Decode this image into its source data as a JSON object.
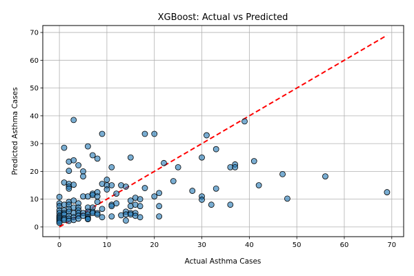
{
  "chart_data": {
    "type": "scatter",
    "title": "XGBoost: Actual vs Predicted",
    "xlabel": "Actual Asthma Cases",
    "ylabel": "Predicted Asthma Cases",
    "xlim": [
      -3.5,
      72.5
    ],
    "ylim": [
      -3.5,
      72.5
    ],
    "xticks": [
      0,
      10,
      20,
      30,
      40,
      50,
      60,
      70
    ],
    "yticks": [
      0,
      10,
      20,
      30,
      40,
      50,
      60,
      70
    ],
    "grid": true,
    "point_color": "#1f77b4",
    "point_edge_color": "#000000",
    "reference_line": {
      "from": [
        0,
        0
      ],
      "to": [
        69,
        69
      ],
      "color": "#ff0000",
      "style": "dashed"
    },
    "points": [
      [
        0,
        10.8
      ],
      [
        0,
        8.5
      ],
      [
        0,
        7.5
      ],
      [
        0,
        6
      ],
      [
        0,
        5
      ],
      [
        0,
        4
      ],
      [
        0,
        3.5
      ],
      [
        0,
        3
      ],
      [
        0,
        2.5
      ],
      [
        0,
        2
      ],
      [
        0,
        1.5
      ],
      [
        1,
        28.5
      ],
      [
        1,
        16
      ],
      [
        1,
        8
      ],
      [
        1,
        6
      ],
      [
        1,
        5
      ],
      [
        1,
        4.5
      ],
      [
        1,
        3
      ],
      [
        1,
        2.5
      ],
      [
        2,
        23.5
      ],
      [
        2,
        20.2
      ],
      [
        2,
        15.5
      ],
      [
        2,
        14.5
      ],
      [
        2,
        13.8
      ],
      [
        2,
        9
      ],
      [
        2,
        8
      ],
      [
        2,
        6.5
      ],
      [
        2,
        5.5
      ],
      [
        2,
        4
      ],
      [
        2,
        3
      ],
      [
        2,
        2.2
      ],
      [
        3,
        38.5
      ],
      [
        3,
        24
      ],
      [
        3,
        15.2
      ],
      [
        3,
        9.5
      ],
      [
        3,
        7
      ],
      [
        3,
        5
      ],
      [
        3,
        3.5
      ],
      [
        3,
        2.5
      ],
      [
        4,
        22.2
      ],
      [
        4,
        8.5
      ],
      [
        4,
        7
      ],
      [
        4,
        6
      ],
      [
        4,
        5
      ],
      [
        4,
        4
      ],
      [
        4,
        3
      ],
      [
        5,
        20
      ],
      [
        5,
        18.2
      ],
      [
        5,
        11
      ],
      [
        5,
        5
      ],
      [
        5,
        4
      ],
      [
        6,
        29
      ],
      [
        6,
        11
      ],
      [
        6,
        7
      ],
      [
        6,
        5.5
      ],
      [
        6,
        4.5
      ],
      [
        6,
        3.5
      ],
      [
        6,
        3
      ],
      [
        6,
        2.8
      ],
      [
        7,
        25.8
      ],
      [
        7,
        12
      ],
      [
        7,
        11.5
      ],
      [
        7,
        7
      ],
      [
        7,
        5.5
      ],
      [
        7,
        5
      ],
      [
        8,
        24.6
      ],
      [
        8,
        12.5
      ],
      [
        8,
        11
      ],
      [
        8,
        9
      ],
      [
        8,
        5
      ],
      [
        8,
        4.5
      ],
      [
        9,
        33.5
      ],
      [
        9,
        15.5
      ],
      [
        9,
        6.5
      ],
      [
        9,
        3.5
      ],
      [
        10,
        17
      ],
      [
        10,
        15
      ],
      [
        10,
        13.5
      ],
      [
        11,
        21.5
      ],
      [
        11,
        15
      ],
      [
        11,
        8
      ],
      [
        11,
        7.5
      ],
      [
        11,
        3.8
      ],
      [
        12,
        12
      ],
      [
        12,
        8.5
      ],
      [
        13,
        15
      ],
      [
        13,
        4.2
      ],
      [
        14,
        14.5
      ],
      [
        14,
        5.5
      ],
      [
        14,
        4.5
      ],
      [
        14,
        2.3
      ],
      [
        15,
        25
      ],
      [
        15,
        9.5
      ],
      [
        15,
        7.5
      ],
      [
        15,
        5
      ],
      [
        15,
        4.5
      ],
      [
        16,
        10.5
      ],
      [
        16,
        8
      ],
      [
        16,
        5
      ],
      [
        16,
        4
      ],
      [
        17,
        10
      ],
      [
        17,
        7.5
      ],
      [
        17,
        3.5
      ],
      [
        18,
        33.5
      ],
      [
        18,
        14
      ],
      [
        20,
        33.5
      ],
      [
        20,
        11
      ],
      [
        21,
        12.2
      ],
      [
        21,
        7.5
      ],
      [
        21,
        3.8
      ],
      [
        22,
        23
      ],
      [
        24,
        16.5
      ],
      [
        25,
        21.5
      ],
      [
        28,
        13
      ],
      [
        30,
        25
      ],
      [
        30,
        11
      ],
      [
        30,
        9.8
      ],
      [
        31,
        33
      ],
      [
        32,
        8
      ],
      [
        33,
        28
      ],
      [
        33,
        13.8
      ],
      [
        36,
        21.5
      ],
      [
        36,
        8
      ],
      [
        37,
        22.5
      ],
      [
        37,
        21.5
      ],
      [
        39,
        38
      ],
      [
        41,
        23.7
      ],
      [
        42,
        15
      ],
      [
        47,
        19
      ],
      [
        48,
        10.2
      ],
      [
        56,
        18.2
      ],
      [
        69,
        12.5
      ]
    ]
  }
}
